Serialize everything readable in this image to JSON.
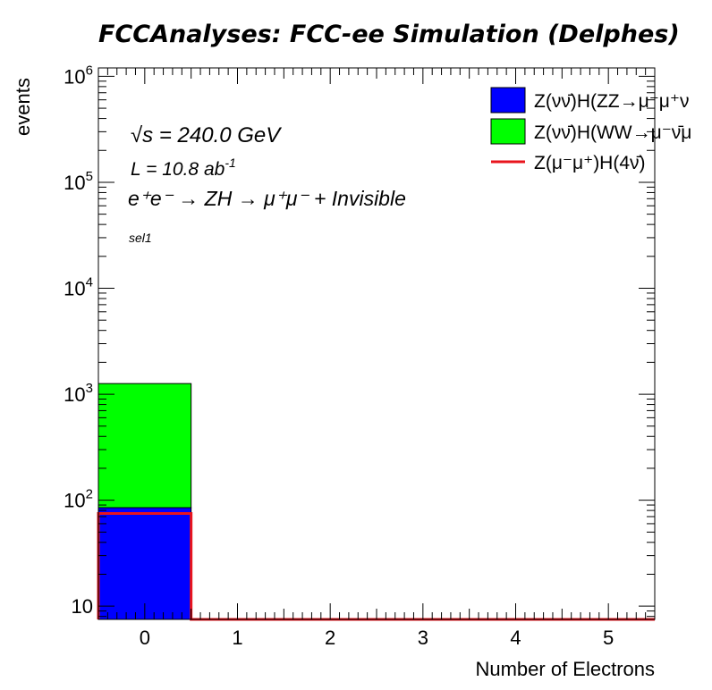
{
  "chart_data": {
    "type": "bar",
    "title": "FCCAnalyses: FCC-ee Simulation (Delphes)",
    "xlabel": "Number of Electrons",
    "ylabel": "events",
    "yscale": "log",
    "xlim": [
      -0.5,
      5.5
    ],
    "ylim": [
      7.5,
      1200000
    ],
    "x_ticks": [
      "0",
      "1",
      "2",
      "3",
      "4",
      "5"
    ],
    "y_ticks": [
      {
        "value": 10,
        "base": "10",
        "exp": ""
      },
      {
        "value": 100,
        "base": "10",
        "exp": "2"
      },
      {
        "value": 1000,
        "base": "10",
        "exp": "3"
      },
      {
        "value": 10000,
        "base": "10",
        "exp": "4"
      },
      {
        "value": 100000,
        "base": "10",
        "exp": "5"
      },
      {
        "value": 1000000,
        "base": "10",
        "exp": "6"
      }
    ],
    "bins": [
      0,
      1,
      2,
      3,
      4,
      5
    ],
    "stacked_series": [
      {
        "name": "Z(νν̄)H(ZZ→μ⁻μ⁺ν",
        "color": "#0000ff",
        "values": [
          85,
          0,
          0,
          0,
          0,
          0
        ]
      },
      {
        "name": "Z(νν̄)H(WW→μ⁻ν̄μ",
        "color": "#00ff00",
        "values": [
          1175,
          0,
          0,
          0,
          0,
          0
        ]
      }
    ],
    "line_series": [
      {
        "name": "Z(μ⁻μ⁺)H(4ν̄)",
        "color": "#e8141d",
        "values": [
          75,
          0,
          0,
          0,
          0,
          0
        ]
      }
    ],
    "annotations": {
      "sqrt_s": "√s = 240.0 GeV",
      "lumi": "L = 10.8 ab",
      "lumi_exp": "-1",
      "process": "e⁺e⁻ → ZH → μ⁺μ⁻ + Invisible",
      "selection": "sel1"
    }
  }
}
